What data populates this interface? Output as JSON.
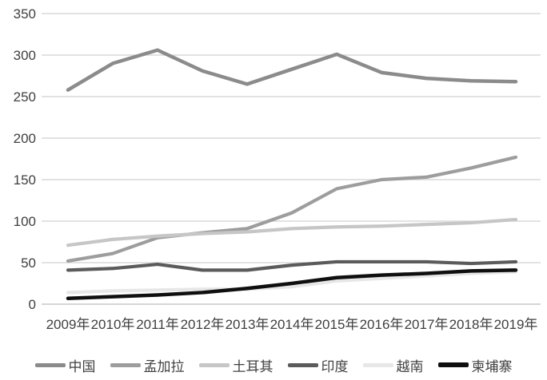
{
  "chart_data": {
    "type": "line",
    "title": "",
    "xlabel": "",
    "ylabel": "",
    "categories": [
      "2009年",
      "2010年",
      "2011年",
      "2012年",
      "2013年",
      "2014年",
      "2015年",
      "2016年",
      "2017年",
      "2018年",
      "2019年"
    ],
    "series": [
      {
        "id": "china",
        "name": "中国",
        "color": "#8b8b8b",
        "values": [
          258,
          290,
          306,
          281,
          265,
          283,
          301,
          279,
          272,
          269,
          268
        ]
      },
      {
        "id": "bangladesh",
        "name": "孟加拉",
        "color": "#9d9d9d",
        "values": [
          52,
          61,
          80,
          86,
          91,
          110,
          139,
          150,
          153,
          164,
          177
        ]
      },
      {
        "id": "turkey",
        "name": "土耳其",
        "color": "#c6c6c6",
        "values": [
          71,
          78,
          82,
          85,
          87,
          91,
          93,
          94,
          96,
          98,
          102
        ]
      },
      {
        "id": "india",
        "name": "印度",
        "color": "#5b5b5b",
        "values": [
          41,
          43,
          48,
          41,
          41,
          47,
          51,
          51,
          51,
          49,
          51
        ]
      },
      {
        "id": "vietnam",
        "name": "越南",
        "color": "#e7e7e7",
        "values": [
          14,
          16,
          17,
          18,
          18,
          21,
          28,
          31,
          34,
          37,
          39
        ]
      },
      {
        "id": "cambodia",
        "name": "柬埔寨",
        "color": "#0f0f0f",
        "values": [
          7,
          9,
          11,
          14,
          19,
          25,
          32,
          35,
          37,
          40,
          41
        ]
      }
    ],
    "y_axis": {
      "ticks": [
        0,
        50,
        100,
        150,
        200,
        250,
        300,
        350
      ],
      "range": [
        0,
        350
      ]
    },
    "x_axis": {
      "range_labels_visible": true
    },
    "grid": "horizontal",
    "legend_position": "bottom",
    "colors": {
      "gridline": "#d9d9d9",
      "baseline": "#c9c9c9",
      "axis_text": "#3f3f3f",
      "background": "#ffffff"
    }
  }
}
